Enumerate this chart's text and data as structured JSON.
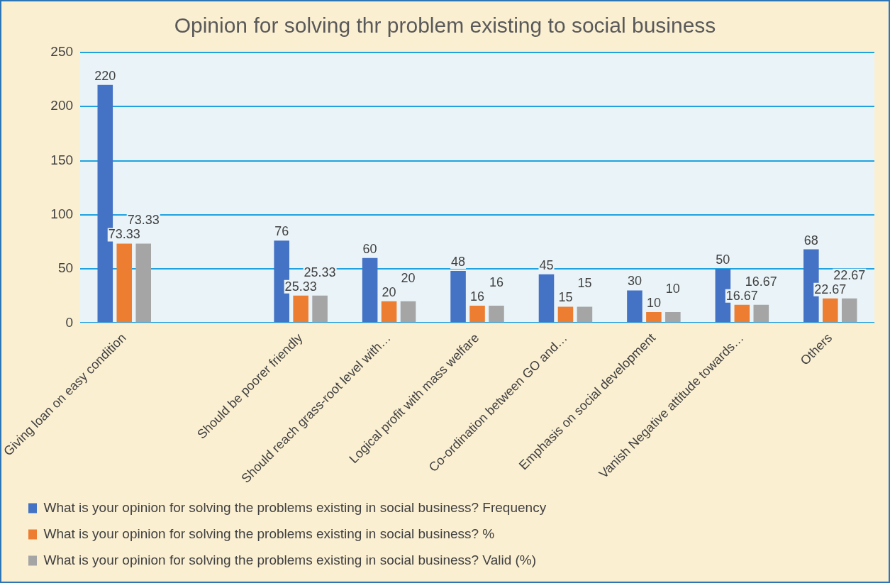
{
  "chart_data": {
    "type": "bar",
    "title": "Opinion for solving thr problem existing to social business",
    "categories": [
      "Giving loan on easy condition",
      null,
      "Should be poorer friendly",
      "Should reach grass-root level with…",
      "Logical profit with mass welfare",
      "Co-ordination between GO and…",
      "Emphasis on social development",
      "Vanish Negative attitude towards…",
      "Others"
    ],
    "series": [
      {
        "name": "What is your opinion for solving the problems existing in social business? Frequency",
        "color": "#4472c4",
        "values": [
          220,
          null,
          76,
          60,
          48,
          45,
          30,
          50,
          68
        ]
      },
      {
        "name": "What is your opinion for solving the problems existing in social business? %",
        "color": "#ed7d31",
        "values": [
          73.33,
          null,
          25.33,
          20,
          16,
          15,
          10,
          16.67,
          22.67
        ]
      },
      {
        "name": "What is your opinion for solving the problems existing in social business? Valid (%)",
        "color": "#a5a5a5",
        "values": [
          73.33,
          null,
          25.33,
          20,
          16,
          15,
          10,
          16.67,
          22.67
        ]
      }
    ],
    "ylim": [
      0,
      250
    ],
    "yticks": [
      0,
      50,
      100,
      150,
      200,
      250
    ],
    "grid": "y",
    "legend": "bottom",
    "data_labels": true
  }
}
